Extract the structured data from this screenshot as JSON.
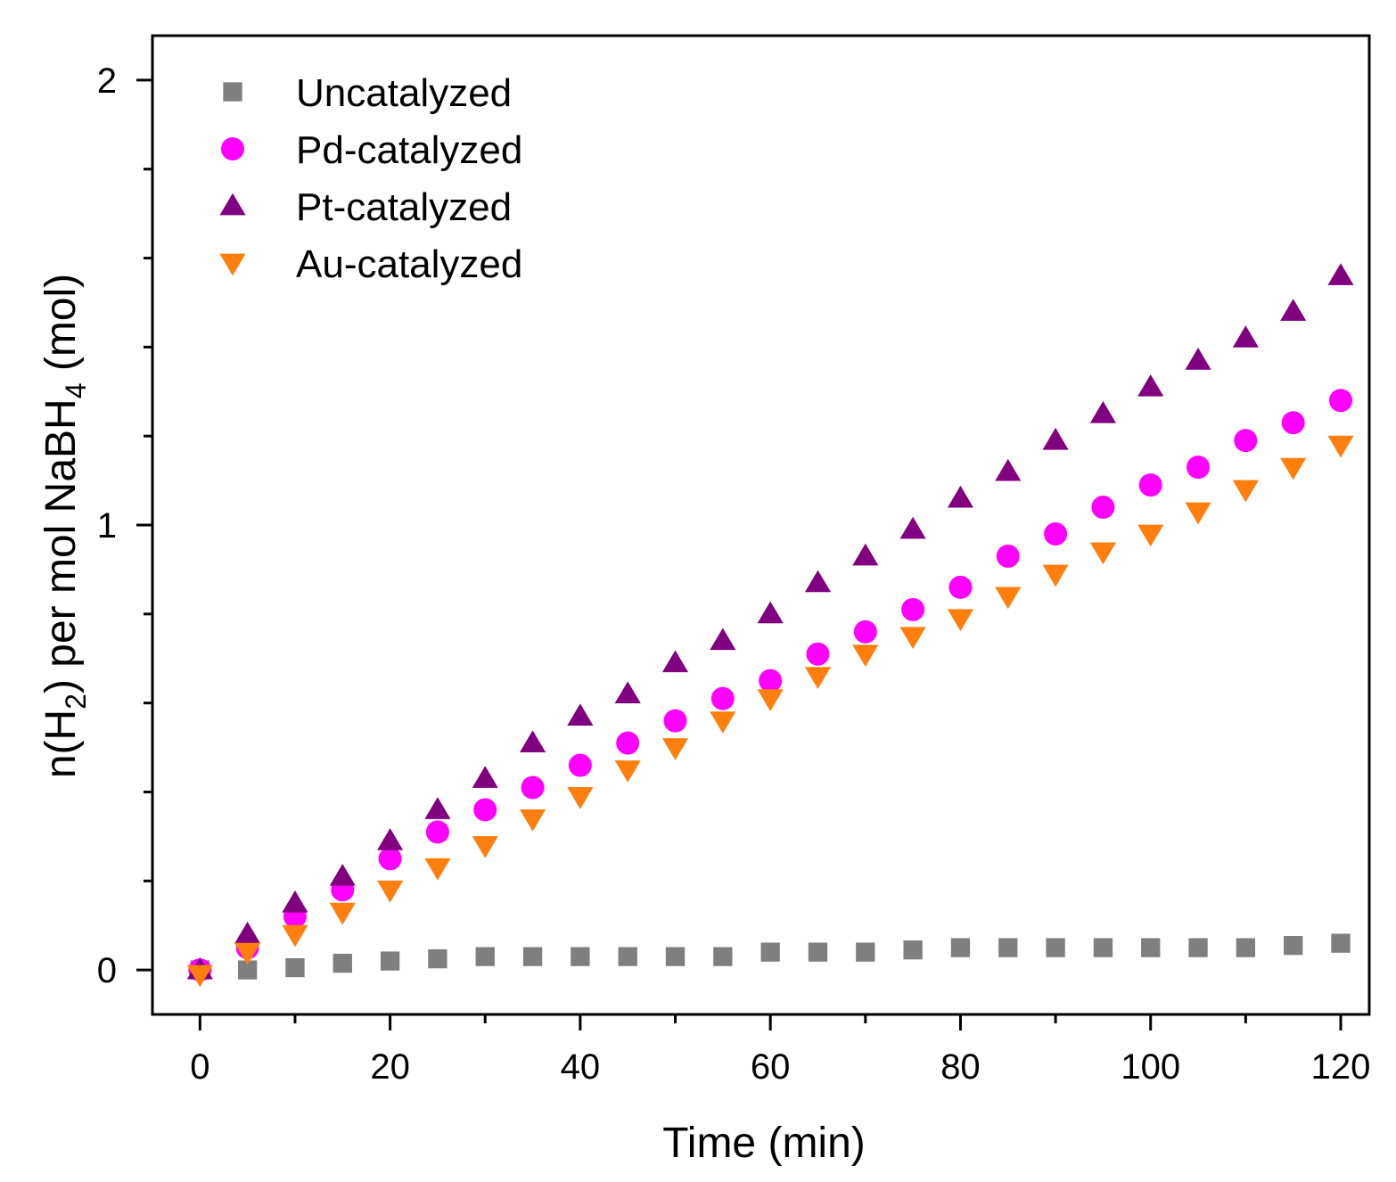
{
  "chart_data": {
    "type": "scatter",
    "title": "",
    "xlabel": "Time (min)",
    "ylabel": {
      "prefix": "n(H",
      "sub1": "2",
      "middle": ") per mol NaBH",
      "sub2": "4",
      "suffix": " (mol)"
    },
    "xlim": [
      -5,
      123
    ],
    "ylim": [
      -0.1,
      2.1
    ],
    "xticks": [
      0,
      20,
      40,
      60,
      80,
      100,
      120
    ],
    "yticks_major": [
      0,
      1,
      2
    ],
    "yticks_minor": [
      0.2,
      0.4,
      0.6,
      0.8,
      1.2,
      1.4,
      1.6,
      1.8
    ],
    "legend_position": "top-left",
    "x": [
      0,
      5,
      10,
      15,
      20,
      25,
      30,
      35,
      40,
      45,
      50,
      55,
      60,
      65,
      70,
      75,
      80,
      85,
      90,
      95,
      100,
      105,
      110,
      115,
      120
    ],
    "series": [
      {
        "name": "Uncatalyzed",
        "marker": "square",
        "color": "#7f7f7f",
        "values": [
          0.0,
          0.0,
          0.005,
          0.015,
          0.02,
          0.025,
          0.03,
          0.03,
          0.03,
          0.03,
          0.03,
          0.03,
          0.04,
          0.04,
          0.04,
          0.045,
          0.05,
          0.05,
          0.05,
          0.05,
          0.05,
          0.05,
          0.05,
          0.055,
          0.06
        ]
      },
      {
        "name": "Pd-catalyzed",
        "marker": "circle",
        "color": "#ff00ff",
        "values": [
          0.0,
          0.05,
          0.12,
          0.18,
          0.25,
          0.31,
          0.36,
          0.41,
          0.46,
          0.51,
          0.56,
          0.61,
          0.65,
          0.71,
          0.76,
          0.81,
          0.86,
          0.93,
          0.98,
          1.04,
          1.09,
          1.13,
          1.19,
          1.23,
          1.28
        ]
      },
      {
        "name": "Pt-catalyzed",
        "marker": "triangle-up",
        "color": "#800080",
        "values": [
          0.0,
          0.08,
          0.15,
          0.21,
          0.29,
          0.36,
          0.43,
          0.51,
          0.57,
          0.62,
          0.69,
          0.74,
          0.8,
          0.87,
          0.93,
          0.99,
          1.06,
          1.12,
          1.19,
          1.25,
          1.31,
          1.37,
          1.42,
          1.48,
          1.56
        ]
      },
      {
        "name": "Au-catalyzed",
        "marker": "triangle-down",
        "color": "#ff7f0e",
        "values": [
          -0.01,
          0.04,
          0.08,
          0.13,
          0.18,
          0.23,
          0.28,
          0.34,
          0.39,
          0.45,
          0.5,
          0.56,
          0.61,
          0.66,
          0.71,
          0.75,
          0.79,
          0.84,
          0.89,
          0.94,
          0.98,
          1.03,
          1.08,
          1.13,
          1.18
        ]
      }
    ]
  }
}
